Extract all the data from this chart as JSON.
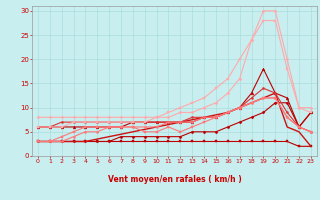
{
  "background_color": "#c8eef0",
  "grid_color": "#aadddd",
  "xlabel": "Vent moyen/en rafales ( km/h )",
  "xlim": [
    -0.5,
    23.5
  ],
  "ylim": [
    0,
    31
  ],
  "yticks": [
    0,
    5,
    10,
    15,
    20,
    25,
    30
  ],
  "xticks": [
    0,
    1,
    2,
    3,
    4,
    5,
    6,
    7,
    8,
    9,
    10,
    11,
    12,
    13,
    14,
    15,
    16,
    17,
    18,
    19,
    20,
    21,
    22,
    23
  ],
  "series": [
    {
      "x": [
        0,
        1,
        2,
        3,
        4,
        5,
        6,
        7,
        8,
        9,
        10,
        11,
        12,
        13,
        14,
        15,
        16,
        17,
        18,
        19,
        20,
        21,
        22,
        23
      ],
      "y": [
        3,
        3,
        3,
        3,
        3,
        3,
        3,
        3,
        3,
        3,
        3,
        3,
        3,
        3,
        3,
        3,
        3,
        3,
        3,
        3,
        3,
        3,
        2,
        2
      ],
      "color": "#bb0000",
      "lw": 0.8,
      "marker": "s",
      "ms": 1.5
    },
    {
      "x": [
        0,
        1,
        2,
        3,
        4,
        5,
        6,
        7,
        8,
        9,
        10,
        11,
        12,
        13,
        14,
        15,
        16,
        17,
        18,
        19,
        20,
        21,
        22,
        23
      ],
      "y": [
        3,
        3,
        3,
        3,
        3,
        3,
        3,
        4,
        4,
        4,
        4,
        4,
        4,
        5,
        5,
        5,
        6,
        7,
        8,
        9,
        11,
        11,
        6,
        9
      ],
      "color": "#bb0000",
      "lw": 0.8,
      "marker": "D",
      "ms": 1.5
    },
    {
      "x": [
        0,
        1,
        2,
        3,
        4,
        5,
        6,
        7,
        8,
        9,
        10,
        11,
        12,
        13,
        14,
        15,
        16,
        17,
        18,
        19,
        20,
        21,
        22,
        23
      ],
      "y": [
        6,
        6,
        6,
        6,
        6,
        6,
        6,
        6,
        7,
        7,
        7,
        7,
        7,
        7,
        8,
        8,
        9,
        10,
        13,
        18,
        13,
        12,
        6,
        9
      ],
      "color": "#bb0000",
      "lw": 0.8,
      "marker": "^",
      "ms": 2
    },
    {
      "x": [
        0,
        1,
        2,
        3,
        4,
        5,
        6,
        7,
        8,
        9,
        10,
        11,
        12,
        13,
        14,
        15,
        16,
        17,
        18,
        19,
        20,
        21,
        22,
        23
      ],
      "y": [
        3,
        3,
        3,
        3,
        3,
        3.5,
        4,
        4.5,
        5,
        5.5,
        6,
        6.5,
        7,
        7.5,
        8,
        8.5,
        9,
        10,
        11,
        12,
        13,
        6,
        5,
        2
      ],
      "color": "#cc1111",
      "lw": 1.0,
      "marker": null,
      "ms": 0
    },
    {
      "x": [
        0,
        1,
        2,
        3,
        4,
        5,
        6,
        7,
        8,
        9,
        10,
        11,
        12,
        13,
        14,
        15,
        16,
        17,
        18,
        19,
        20,
        21,
        22,
        23
      ],
      "y": [
        6,
        6,
        7,
        7,
        7,
        7,
        7,
        7,
        7,
        7,
        7,
        7,
        7,
        8,
        8,
        8,
        9,
        10,
        12,
        14,
        13,
        9,
        6,
        5
      ],
      "color": "#dd3333",
      "lw": 0.8,
      "marker": "o",
      "ms": 1.5
    },
    {
      "x": [
        0,
        1,
        2,
        3,
        4,
        5,
        6,
        7,
        8,
        9,
        10,
        11,
        12,
        13,
        14,
        15,
        16,
        17,
        18,
        19,
        20,
        21,
        22,
        23
      ],
      "y": [
        8,
        8,
        8,
        8,
        8,
        8,
        8,
        8,
        8,
        8,
        8,
        8,
        9,
        9,
        10,
        11,
        13,
        16,
        24,
        30,
        30,
        20,
        10,
        10
      ],
      "color": "#ffaaaa",
      "lw": 0.8,
      "marker": "D",
      "ms": 1.5
    },
    {
      "x": [
        0,
        1,
        2,
        3,
        4,
        5,
        6,
        7,
        8,
        9,
        10,
        11,
        12,
        13,
        14,
        15,
        16,
        17,
        18,
        19,
        20,
        21,
        22,
        23
      ],
      "y": [
        6,
        6,
        6,
        7,
        7,
        7,
        7,
        7,
        7,
        7,
        8,
        9,
        10,
        11,
        12,
        14,
        16,
        20,
        24,
        28,
        28,
        18,
        10,
        9
      ],
      "color": "#ffaaaa",
      "lw": 0.8,
      "marker": "s",
      "ms": 1.5
    },
    {
      "x": [
        0,
        1,
        2,
        3,
        4,
        5,
        6,
        7,
        8,
        9,
        10,
        11,
        12,
        13,
        14,
        15,
        16,
        17,
        18,
        19,
        20,
        21,
        22,
        23
      ],
      "y": [
        3,
        3,
        3,
        4,
        5,
        5,
        6,
        6,
        6,
        6,
        6,
        7,
        7,
        7,
        8,
        8,
        9,
        10,
        11,
        12,
        12,
        8,
        6,
        5
      ],
      "color": "#ff7777",
      "lw": 0.8,
      "marker": "o",
      "ms": 1.5
    },
    {
      "x": [
        0,
        1,
        2,
        3,
        4,
        5,
        6,
        7,
        8,
        9,
        10,
        11,
        12,
        13,
        14,
        15,
        16,
        17,
        18,
        19,
        20,
        21,
        22,
        23
      ],
      "y": [
        3,
        3,
        4,
        5,
        6,
        6,
        6,
        6,
        6,
        5,
        5,
        6,
        5,
        6,
        7,
        8,
        9,
        10,
        11,
        12,
        12,
        8,
        6,
        5
      ],
      "color": "#ff7777",
      "lw": 0.8,
      "marker": "s",
      "ms": 1.5
    }
  ],
  "arrow_symbol": "→",
  "tick_color": "#cc0000",
  "xlabel_color": "#cc0000",
  "xlabel_fontsize": 5.5,
  "xlabel_fontweight": "bold",
  "ytick_fontsize": 5,
  "xtick_fontsize": 4.5
}
